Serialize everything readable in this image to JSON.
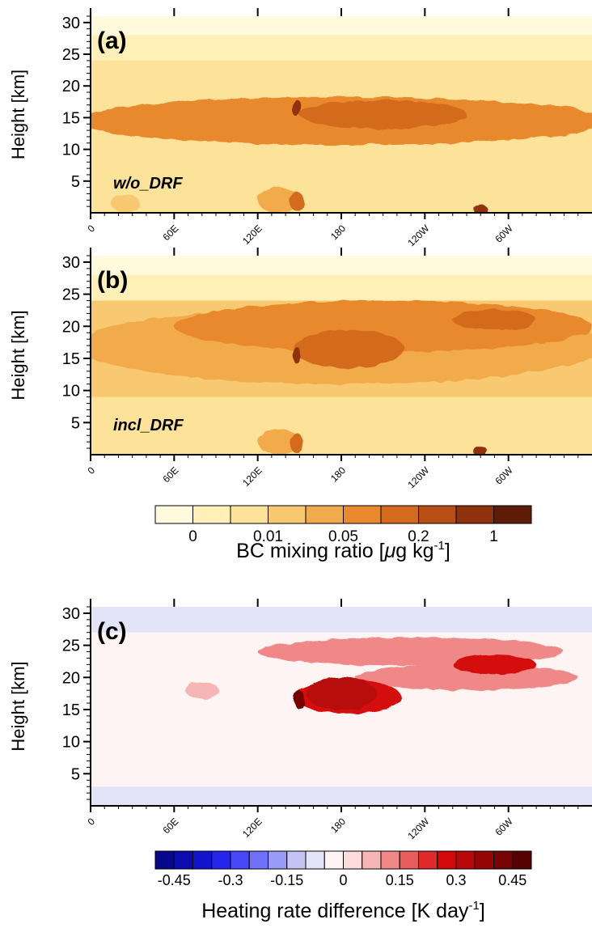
{
  "chart_data": [
    {
      "type": "heatmap",
      "panel_label": "(a)",
      "annotation": "w/o_DRF",
      "ylabel": "Height [km]",
      "yticks": [
        "5",
        "10",
        "15",
        "20",
        "25",
        "30"
      ],
      "ylim": [
        0,
        31
      ],
      "xticks": [
        "0",
        "60E",
        "120E",
        "180",
        "120W",
        "60W"
      ],
      "xlim": [
        0,
        360
      ],
      "blobs": [
        {
          "x": 180,
          "y": 14.5,
          "rx": 190,
          "ry": 3.8,
          "level": 5
        },
        {
          "x": 40,
          "y": 14.5,
          "rx": 40,
          "ry": 2.5,
          "level": 5
        },
        {
          "x": 330,
          "y": 14.5,
          "rx": 30,
          "ry": 2.5,
          "level": 5
        },
        {
          "x": 210,
          "y": 15.5,
          "rx": 60,
          "ry": 2.3,
          "level": 6
        },
        {
          "x": 148,
          "y": 16.5,
          "rx": 3,
          "ry": 1.4,
          "level": 8
        },
        {
          "x": 135,
          "y": 2,
          "rx": 15,
          "ry": 2,
          "level": 4
        },
        {
          "x": 148,
          "y": 1.8,
          "rx": 5,
          "ry": 1.5,
          "level": 6
        },
        {
          "x": 280,
          "y": 0.5,
          "rx": 5,
          "ry": 0.8,
          "level": 8
        },
        {
          "x": 25,
          "y": 1.5,
          "rx": 10,
          "ry": 1.5,
          "level": 3
        }
      ]
    },
    {
      "type": "heatmap",
      "panel_label": "(b)",
      "annotation": "incl_DRF",
      "ylabel": "Height [km]",
      "yticks": [
        "5",
        "10",
        "15",
        "20",
        "25",
        "30"
      ],
      "ylim": [
        0,
        31
      ],
      "xticks": [
        "0",
        "60E",
        "120E",
        "180",
        "120W",
        "60W"
      ],
      "xlim": [
        0,
        360
      ],
      "blobs": [
        {
          "x": 180,
          "y": 17,
          "rx": 190,
          "ry": 6,
          "level": 4
        },
        {
          "x": 210,
          "y": 20,
          "rx": 150,
          "ry": 4,
          "level": 5
        },
        {
          "x": 185,
          "y": 16.5,
          "rx": 40,
          "ry": 3,
          "level": 6
        },
        {
          "x": 290,
          "y": 21,
          "rx": 30,
          "ry": 1.6,
          "level": 6
        },
        {
          "x": 148,
          "y": 15.5,
          "rx": 3,
          "ry": 1.3,
          "level": 8
        },
        {
          "x": 135,
          "y": 2,
          "rx": 15,
          "ry": 2,
          "level": 4
        },
        {
          "x": 148,
          "y": 1.8,
          "rx": 5,
          "ry": 1.5,
          "level": 6
        },
        {
          "x": 280,
          "y": 0.5,
          "rx": 5,
          "ry": 0.8,
          "level": 8
        }
      ]
    },
    {
      "type": "heatmap",
      "panel_label": "(c)",
      "ylabel": "Height [km]",
      "yticks": [
        "5",
        "10",
        "15",
        "20",
        "25",
        "30"
      ],
      "ylim": [
        0,
        31
      ],
      "xticks": [
        "0",
        "60E",
        "120E",
        "180",
        "120W",
        "60W"
      ],
      "xlim": [
        0,
        360
      ],
      "blobs": [
        {
          "x": 230,
          "y": 24,
          "rx": 110,
          "ry": 2.2,
          "level": 12
        },
        {
          "x": 270,
          "y": 20,
          "rx": 80,
          "ry": 2,
          "level": 12
        },
        {
          "x": 290,
          "y": 22,
          "rx": 30,
          "ry": 1.5,
          "level": 15
        },
        {
          "x": 185,
          "y": 17,
          "rx": 38,
          "ry": 2.6,
          "level": 15
        },
        {
          "x": 180,
          "y": 17.5,
          "rx": 25,
          "ry": 2.5,
          "level": 16
        },
        {
          "x": 150,
          "y": 16.5,
          "rx": 4,
          "ry": 1.4,
          "level": 18
        },
        {
          "x": 80,
          "y": 18,
          "rx": 12,
          "ry": 1.3,
          "level": 11
        }
      ]
    }
  ],
  "colorbars": [
    {
      "label_main": "BC mixing ratio [",
      "label_mu": "μ",
      "label_rest": "g kg",
      "label_sup": "-1",
      "label_end": "]",
      "colors": [
        "#fffadc",
        "#fff0b8",
        "#fde39a",
        "#f8c970",
        "#f2ab4c",
        "#e8892e",
        "#d46b1e",
        "#b94e14",
        "#8f310d",
        "#5e1c08"
      ],
      "tick_labels": [
        "0",
        "0.01",
        "0.05",
        "0.2",
        "1"
      ]
    },
    {
      "label_main": "Heating rate difference [K day",
      "label_sup": "-1",
      "label_end": "]",
      "colors": [
        "#08088c",
        "#0b0bb0",
        "#1414d0",
        "#2525ee",
        "#4848f8",
        "#7070fa",
        "#9a9af8",
        "#c4c4f4",
        "#e4e4f8",
        "#fff4f4",
        "#fcdcdc",
        "#f6b6b6",
        "#f08888",
        "#e85c5c",
        "#e02a2a",
        "#d40808",
        "#b80808",
        "#960606",
        "#760404",
        "#560202"
      ],
      "tick_labels": [
        "-0.45",
        "-0.3",
        "-0.15",
        "0",
        "0.15",
        "0.3",
        "0.45"
      ]
    }
  ]
}
